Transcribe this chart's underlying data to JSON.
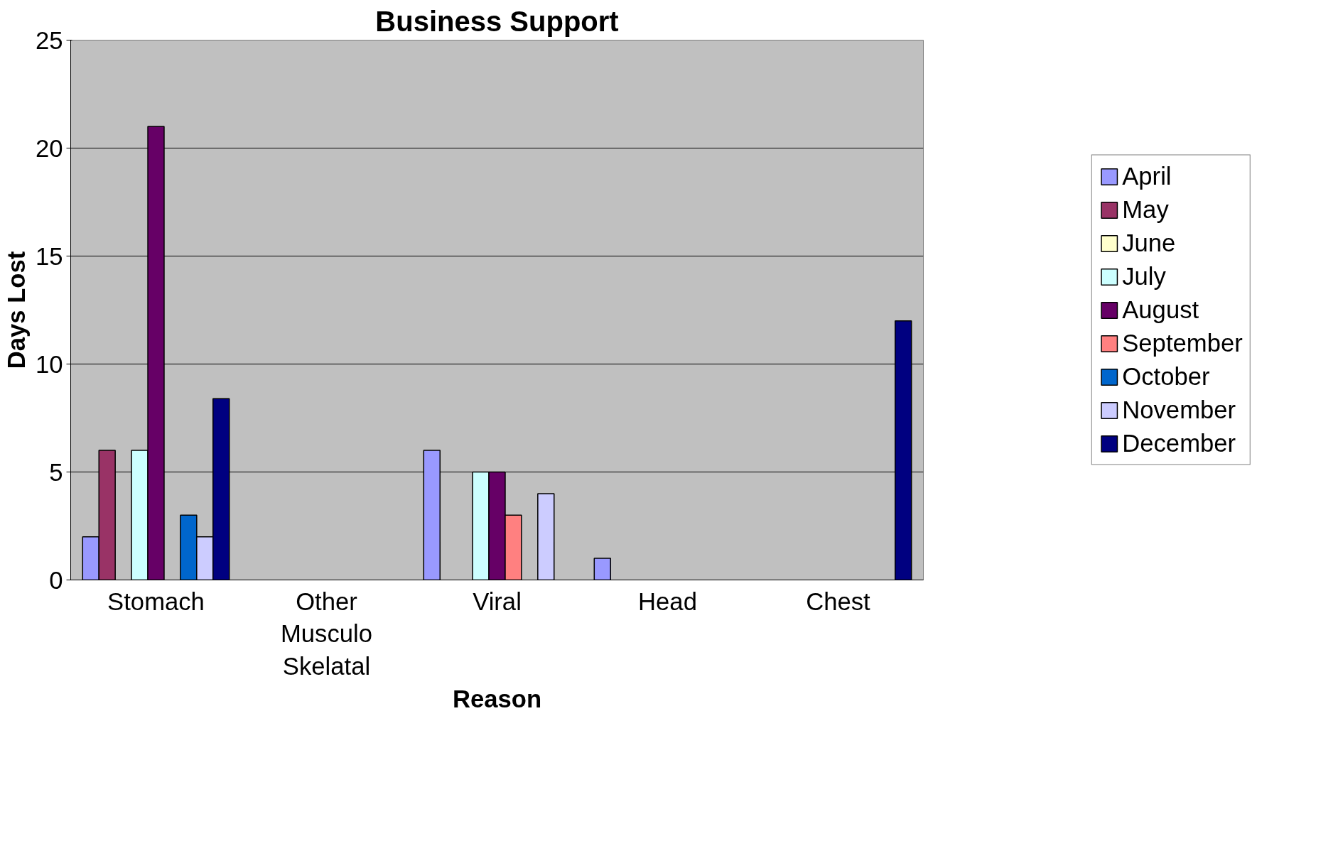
{
  "chart_data": {
    "type": "bar",
    "title": "Business Support",
    "xlabel": "Reason",
    "ylabel": "Days Lost",
    "categories": [
      "Stomach",
      "Other\nMusculo\nSkelatal",
      "Viral",
      "Head",
      "Chest"
    ],
    "series": [
      {
        "name": "April",
        "color": "#9999ff",
        "values": [
          2,
          null,
          6,
          1,
          null
        ]
      },
      {
        "name": "May",
        "color": "#993366",
        "values": [
          6,
          null,
          null,
          null,
          null
        ]
      },
      {
        "name": "June",
        "color": "#ffffcc",
        "values": [
          null,
          null,
          null,
          null,
          null
        ]
      },
      {
        "name": "July",
        "color": "#ccffff",
        "values": [
          6,
          null,
          5,
          null,
          null
        ]
      },
      {
        "name": "August",
        "color": "#660066",
        "values": [
          21,
          null,
          5,
          null,
          null
        ]
      },
      {
        "name": "September",
        "color": "#ff8080",
        "values": [
          null,
          null,
          3,
          null,
          null
        ]
      },
      {
        "name": "October",
        "color": "#0066cc",
        "values": [
          3,
          null,
          null,
          null,
          null
        ]
      },
      {
        "name": "November",
        "color": "#ccccff",
        "values": [
          2,
          null,
          4,
          null,
          null
        ]
      },
      {
        "name": "December",
        "color": "#000080",
        "values": [
          8.4,
          null,
          null,
          null,
          12
        ]
      }
    ],
    "ylim": [
      0,
      25
    ],
    "yticks": [
      0,
      5,
      10,
      15,
      20,
      25
    ],
    "grid": "y",
    "legend": "right"
  }
}
